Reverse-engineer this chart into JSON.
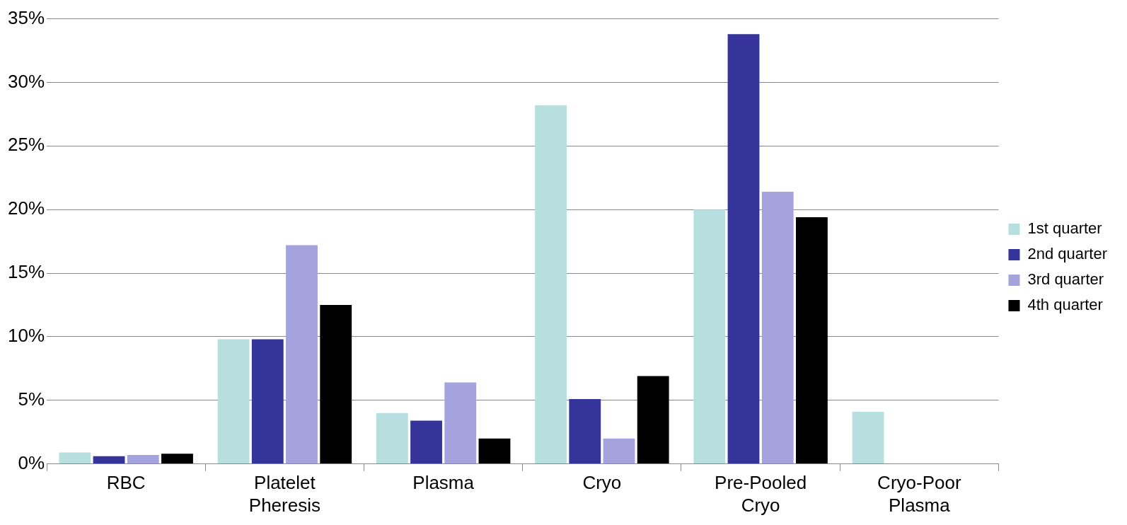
{
  "chart_data": {
    "type": "bar",
    "categories": [
      "RBC",
      "Platelet Pheresis",
      "Plasma",
      "Cryo",
      "Pre-Pooled Cryo",
      "Cryo-Poor Plasma"
    ],
    "series": [
      {
        "name": "1st quarter",
        "color": "#b7dfe0",
        "values": [
          0.9,
          9.8,
          4.0,
          28.2,
          20.0,
          4.1
        ]
      },
      {
        "name": "2nd quarter",
        "color": "#35349a",
        "values": [
          0.6,
          9.8,
          3.4,
          5.1,
          33.8,
          null
        ]
      },
      {
        "name": "3rd quarter",
        "color": "#a4a3de",
        "values": [
          0.7,
          17.2,
          6.4,
          2.0,
          21.4,
          null
        ]
      },
      {
        "name": "4th quarter",
        "color": "#000000",
        "values": [
          0.8,
          12.5,
          2.0,
          6.9,
          19.4,
          null
        ]
      }
    ],
    "ylim": [
      0,
      35
    ],
    "yticks": [
      {
        "value": 0,
        "label": "0%"
      },
      {
        "value": 5,
        "label": "5%"
      },
      {
        "value": 10,
        "label": "10%"
      },
      {
        "value": 15,
        "label": "15%"
      },
      {
        "value": 20,
        "label": "20%"
      },
      {
        "value": 25,
        "label": "25%"
      },
      {
        "value": 30,
        "label": "30%"
      },
      {
        "value": 35,
        "label": "35%"
      }
    ],
    "grid": "y",
    "legend": "right"
  }
}
